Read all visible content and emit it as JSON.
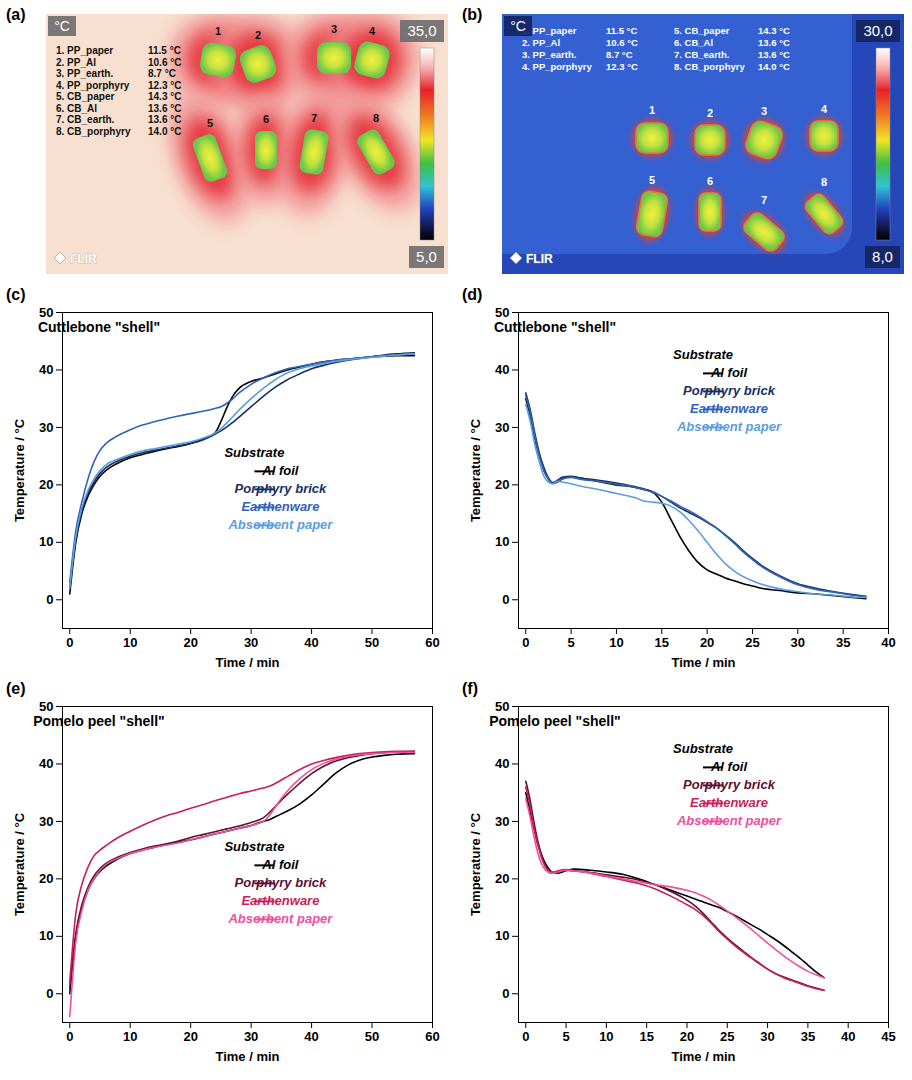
{
  "thermal_images": [
    {
      "panel": "(a)",
      "unit": "°C",
      "colorbar": {
        "range": [
          5,
          35
        ],
        "ticks": [
          {
            "value": 35,
            "label": "35,0"
          },
          {
            "value": 5,
            "label": "5,0"
          }
        ]
      },
      "logo": "FLIR",
      "items": [
        {
          "marker": "1",
          "label": "1. PP_paper",
          "reading": "11.5 °C"
        },
        {
          "marker": "2",
          "label": "2. PP_Al",
          "reading": "10.6 °C"
        },
        {
          "marker": "3",
          "label": "3. PP_earth.",
          "reading": "8.7 °C"
        },
        {
          "marker": "4",
          "label": "4. PP_porphyry",
          "reading": "12.3 °C"
        },
        {
          "marker": "5",
          "label": "5. CB_paper",
          "reading": "14.3 °C"
        },
        {
          "marker": "6",
          "label": "6. CB_Al",
          "reading": "13.6 °C"
        },
        {
          "marker": "7",
          "label": "7. CB_earth.",
          "reading": "13.6 °C"
        },
        {
          "marker": "8",
          "label": "8. CB_porphyry",
          "reading": "14.0 °C"
        }
      ]
    },
    {
      "panel": "(b)",
      "unit": "°C",
      "colorbar": {
        "range": [
          8,
          30
        ],
        "ticks": [
          {
            "value": 30,
            "label": "30,0"
          },
          {
            "value": 8,
            "label": "8,0"
          }
        ]
      },
      "logo": "FLIR",
      "items": [
        {
          "marker": "1",
          "label": "1. PP_paper",
          "reading": "11.5 °C"
        },
        {
          "marker": "2",
          "label": "2. PP_Al",
          "reading": "10.6 °C"
        },
        {
          "marker": "3",
          "label": "3. PP_earth.",
          "reading": "8.7 °C"
        },
        {
          "marker": "4",
          "label": "4. PP_porphyry",
          "reading": "12.3 °C"
        },
        {
          "marker": "5",
          "label": "5. CB_paper",
          "reading": "14.3 °C"
        },
        {
          "marker": "6",
          "label": "6. CB_Al",
          "reading": "13.6 °C"
        },
        {
          "marker": "7",
          "label": "7. CB_earth.",
          "reading": "13.6 °C"
        },
        {
          "marker": "8",
          "label": "8. CB_porphyry",
          "reading": "14.0 °C"
        }
      ]
    }
  ],
  "chart_data": [
    {
      "type": "line",
      "panel": "(c)",
      "title": "Cuttlebone \"shell\"",
      "x_label": "Time / min",
      "y_label": "Temperature / °C",
      "xlim": [
        -1.2,
        60
      ],
      "xticks": [
        0,
        10,
        20,
        30,
        40,
        50,
        60
      ],
      "ylim": [
        -5,
        50
      ],
      "yticks": [
        0,
        10,
        20,
        30,
        40,
        50
      ],
      "grid": false,
      "legend": "lower right",
      "legend_title": "Substrate",
      "x": [
        0,
        1,
        2,
        3,
        4,
        5,
        6,
        8,
        10,
        12,
        14,
        16,
        18,
        20,
        22,
        24,
        25,
        26,
        27,
        28,
        30,
        32,
        34,
        36,
        38,
        40,
        42,
        44,
        46,
        48,
        50,
        52,
        54,
        57
      ],
      "series": [
        {
          "name": "Al foil",
          "color": "#000000",
          "values": [
            1,
            10,
            15,
            18,
            20,
            21.5,
            22.5,
            23.8,
            24.7,
            25.3,
            25.8,
            26.3,
            26.7,
            27.2,
            28,
            29,
            31,
            33.5,
            35.5,
            36.8,
            38,
            38.6,
            39.3,
            40,
            40.5,
            41,
            41.4,
            41.7,
            41.9,
            42.1,
            42.3,
            42.4,
            42.5,
            42.5
          ]
        },
        {
          "name": "Porphyry brick",
          "color": "#1b2f5e",
          "values": [
            2,
            10.5,
            15.5,
            18.5,
            20.5,
            22,
            23,
            24.2,
            25,
            25.6,
            26,
            26.4,
            26.8,
            27.2,
            27.8,
            28.8,
            29.4,
            30.1,
            30.9,
            31.8,
            33.6,
            35.4,
            37,
            38.3,
            39.3,
            40.2,
            40.8,
            41.3,
            41.7,
            42,
            42.3,
            42.6,
            42.8,
            43
          ]
        },
        {
          "name": "Earthenware",
          "color": "#2f63b8",
          "values": [
            3,
            12,
            17,
            21,
            24,
            26,
            27.2,
            28.6,
            29.6,
            30.4,
            31,
            31.5,
            32,
            32.4,
            32.8,
            33.3,
            33.6,
            34.2,
            35,
            36,
            37.5,
            38.6,
            39.5,
            40.2,
            40.6,
            41,
            41.4,
            41.7,
            41.9,
            42.1,
            42.3,
            42.5,
            42.6,
            42.8
          ]
        },
        {
          "name": "Absorbent paper",
          "color": "#5b9ee0",
          "values": [
            2,
            11,
            16,
            19,
            21,
            22.5,
            23.5,
            24.5,
            25.3,
            25.9,
            26.3,
            26.7,
            27.1,
            27.5,
            28.1,
            29,
            29.8,
            30.8,
            31.9,
            33,
            35,
            36.8,
            38.3,
            39.5,
            40.2,
            40.7,
            41.1,
            41.5,
            41.8,
            42,
            42.2,
            42.4,
            42.6,
            42.8
          ]
        }
      ]
    },
    {
      "type": "line",
      "panel": "(d)",
      "title": "Cuttlebone \"shell\"",
      "x_label": "Time / min",
      "y_label": "Temperature / °C",
      "xlim": [
        -0.8,
        40
      ],
      "xticks": [
        0,
        5,
        10,
        15,
        20,
        25,
        30,
        35,
        40
      ],
      "ylim": [
        -5,
        50
      ],
      "yticks": [
        0,
        10,
        20,
        30,
        40,
        50
      ],
      "grid": false,
      "legend": "upper right",
      "legend_title": "Substrate",
      "x": [
        0,
        0.5,
        1,
        1.5,
        2,
        2.5,
        3,
        3.5,
        4,
        5,
        6,
        8,
        10,
        12,
        13,
        14,
        15,
        16,
        17,
        18,
        19,
        20,
        21,
        22,
        23,
        24,
        25,
        26,
        28,
        30,
        32,
        34,
        36,
        37.5
      ],
      "series": [
        {
          "name": "Al foil",
          "color": "#000000",
          "values": [
            35,
            32,
            28,
            25,
            22.5,
            21,
            20.3,
            20.5,
            21,
            21.4,
            21.2,
            20.6,
            20,
            19.6,
            19.2,
            18.7,
            17,
            14,
            11,
            8.5,
            6.5,
            5.2,
            4.5,
            3.8,
            3.3,
            2.8,
            2.4,
            2,
            1.6,
            1.2,
            1,
            0.7,
            0.4,
            0.2
          ]
        },
        {
          "name": "Porphyry brick",
          "color": "#1b2f5e",
          "values": [
            36,
            33,
            29,
            25.5,
            23,
            21.2,
            20.4,
            20.8,
            21.3,
            21.5,
            21.2,
            20.8,
            20.3,
            19.7,
            19.3,
            18.8,
            18,
            17,
            16,
            15.2,
            14.4,
            13.5,
            12.5,
            11.3,
            10,
            8.5,
            7.2,
            6,
            4.2,
            2.8,
            2,
            1.4,
            0.9,
            0.6
          ]
        },
        {
          "name": "Earthenware",
          "color": "#2f63b8",
          "values": [
            35.5,
            32.5,
            28.5,
            25,
            22.5,
            21,
            20.2,
            20.5,
            21,
            21.3,
            21,
            20.6,
            20.1,
            19.6,
            19.2,
            18.7,
            18,
            17.2,
            16.3,
            15.5,
            14.6,
            13.6,
            12.5,
            11.2,
            9.8,
            8.3,
            7,
            5.8,
            4,
            2.6,
            1.8,
            1.3,
            0.8,
            0.5
          ]
        },
        {
          "name": "Absorbent paper",
          "color": "#5b9ee0",
          "values": [
            34,
            31,
            27,
            24,
            21.5,
            20.5,
            20.2,
            20.6,
            20.5,
            20.2,
            19.8,
            19.2,
            18.5,
            17.8,
            17.2,
            17,
            16.8,
            16.3,
            15.3,
            13.8,
            12,
            10,
            8,
            6.3,
            5,
            4,
            3.3,
            2.7,
            1.9,
            1.4,
            1,
            0.8,
            0.5,
            0.4
          ]
        }
      ]
    },
    {
      "type": "line",
      "panel": "(e)",
      "title": "Pomelo peel \"shell\"",
      "x_label": "Time / min",
      "y_label": "Temperature / °C",
      "xlim": [
        -1.2,
        60
      ],
      "xticks": [
        0,
        10,
        20,
        30,
        40,
        50,
        60
      ],
      "ylim": [
        -5,
        50
      ],
      "yticks": [
        0,
        10,
        20,
        30,
        40,
        50
      ],
      "grid": false,
      "legend": "lower right",
      "legend_title": "Substrate",
      "x": [
        0,
        1,
        2,
        3,
        4,
        5,
        6,
        8,
        10,
        12,
        14,
        16,
        18,
        20,
        22,
        24,
        26,
        28,
        30,
        32,
        33,
        34,
        35,
        36,
        38,
        40,
        42,
        44,
        46,
        48,
        50,
        52,
        54,
        57
      ],
      "series": [
        {
          "name": "Al foil",
          "color": "#000000",
          "values": [
            0,
            10,
            15,
            18,
            20,
            21.3,
            22.2,
            23.5,
            24.4,
            25,
            25.5,
            26,
            26.4,
            26.8,
            27.3,
            27.8,
            28.3,
            28.8,
            29.3,
            30,
            30.3,
            30.8,
            31.3,
            31.8,
            33,
            34.6,
            36.5,
            38.4,
            39.8,
            40.7,
            41.2,
            41.5,
            41.7,
            41.8
          ]
        },
        {
          "name": "Porphyry brick",
          "color": "#5c1030",
          "values": [
            1,
            10.5,
            15.5,
            18.5,
            20.5,
            21.8,
            22.7,
            23.8,
            24.6,
            25.2,
            25.7,
            26.1,
            26.6,
            27.2,
            27.7,
            28.2,
            28.7,
            29.2,
            29.8,
            30.6,
            31.5,
            32.6,
            33.7,
            34.7,
            36.6,
            38.3,
            39.6,
            40.5,
            41.1,
            41.5,
            41.8,
            42,
            42.1,
            42.2
          ]
        },
        {
          "name": "Earthenware",
          "color": "#c81e5a",
          "values": [
            2,
            14,
            19,
            22,
            24,
            25,
            25.8,
            27.2,
            28.3,
            29.3,
            30.2,
            31,
            31.6,
            32.3,
            32.9,
            33.6,
            34.2,
            34.8,
            35.3,
            35.8,
            36.1,
            36.6,
            37.2,
            37.8,
            39,
            40,
            40.6,
            41.1,
            41.5,
            41.8,
            42,
            42.1,
            42.2,
            42.2
          ]
        },
        {
          "name": "Absorbent paper",
          "color": "#f04f9f",
          "values": [
            -4,
            9,
            14.5,
            18,
            20,
            21.5,
            22.5,
            23.6,
            24.4,
            25,
            25.5,
            25.9,
            26.3,
            26.8,
            27.3,
            27.8,
            28.3,
            28.8,
            29.3,
            30,
            31,
            32.5,
            34,
            35.3,
            37.4,
            39,
            40.1,
            40.8,
            41.3,
            41.6,
            41.8,
            41.9,
            42,
            42
          ]
        }
      ]
    },
    {
      "type": "line",
      "panel": "(f)",
      "title": "Pomelo peel \"shell\"",
      "x_label": "Time / min",
      "y_label": "Temperature / °C",
      "xlim": [
        -0.9,
        45
      ],
      "xticks": [
        0,
        5,
        10,
        15,
        20,
        25,
        30,
        35,
        40,
        45
      ],
      "ylim": [
        -5,
        50
      ],
      "yticks": [
        0,
        10,
        20,
        30,
        40,
        50
      ],
      "grid": false,
      "legend": "upper right",
      "legend_title": "Substrate",
      "x": [
        0,
        0.5,
        1,
        1.5,
        2,
        2.5,
        3,
        3.5,
        4,
        5,
        6,
        8,
        10,
        12,
        14,
        16,
        18,
        20,
        21,
        22,
        23,
        24,
        25,
        26,
        27,
        28,
        29,
        30,
        31,
        32,
        33,
        34,
        35,
        36,
        37
      ],
      "series": [
        {
          "name": "Al foil",
          "color": "#000000",
          "values": [
            35,
            32,
            29,
            26,
            24,
            22.5,
            21.5,
            21,
            21,
            21.4,
            21.7,
            21.5,
            21.2,
            20.8,
            20,
            19,
            18,
            17,
            16.5,
            16,
            15.5,
            15,
            14.3,
            13.6,
            12.8,
            12,
            11.2,
            10.3,
            9.4,
            8.4,
            7.3,
            6.2,
            5,
            3.8,
            2.8
          ]
        },
        {
          "name": "Porphyry brick",
          "color": "#5c1030",
          "values": [
            37,
            34,
            30,
            26.5,
            24,
            22,
            21.3,
            21,
            21.2,
            21.5,
            21.4,
            21.1,
            20.7,
            20.3,
            19.8,
            19,
            17.8,
            16.3,
            15.3,
            14,
            12.5,
            11,
            9.7,
            8.5,
            7.4,
            6.3,
            5.3,
            4.3,
            3.5,
            2.9,
            2.4,
            1.9,
            1.4,
            1,
            0.6
          ]
        },
        {
          "name": "Earthenware",
          "color": "#c81e5a",
          "values": [
            36,
            33,
            29,
            26,
            23.5,
            22,
            21.3,
            21.2,
            21.4,
            21.6,
            21.4,
            21,
            20.4,
            19.8,
            19.2,
            18.3,
            17,
            15.5,
            14.7,
            13.6,
            12.3,
            10.8,
            9.5,
            8.3,
            7.2,
            6.2,
            5.2,
            4.3,
            3.5,
            2.8,
            2.3,
            1.8,
            1.3,
            0.9,
            0.6
          ]
        },
        {
          "name": "Absorbent paper",
          "color": "#f04f9f",
          "values": [
            34,
            31,
            27.5,
            24.5,
            22.5,
            21.5,
            21,
            21,
            21.2,
            21.5,
            21.4,
            21,
            20.5,
            20,
            19.5,
            19,
            18.6,
            18,
            17.6,
            17,
            16.3,
            15.4,
            14.4,
            13.4,
            12.3,
            11.2,
            10,
            8.8,
            7.7,
            6.6,
            5.6,
            4.7,
            3.9,
            3.3,
            2.8
          ]
        }
      ]
    }
  ]
}
